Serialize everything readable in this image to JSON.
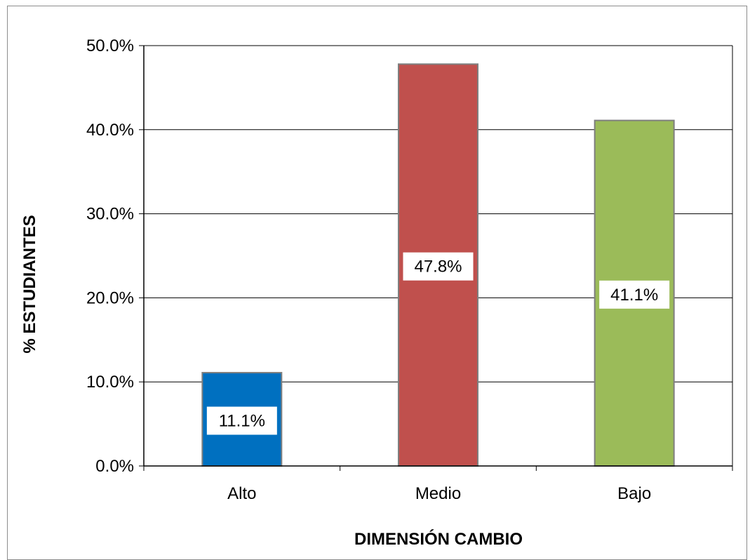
{
  "chart_data": {
    "type": "bar",
    "categories": [
      "Alto",
      "Medio",
      "Bajo"
    ],
    "values": [
      11.1,
      47.8,
      41.1
    ],
    "data_labels": [
      "11.1%",
      "47.8%",
      "41.1%"
    ],
    "colors": [
      "#0070c0",
      "#c0504d",
      "#9bbb59"
    ],
    "xlabel": "DIMENSIÓN CAMBIO",
    "ylabel": "% ESTUDIANTES",
    "ylim": [
      0,
      50
    ],
    "yticks": [
      0,
      10,
      20,
      30,
      40,
      50
    ],
    "ytick_labels": [
      "0.0%",
      "10.0%",
      "20.0%",
      "30.0%",
      "40.0%",
      "50.0%"
    ],
    "grid": true,
    "legend": "none"
  }
}
